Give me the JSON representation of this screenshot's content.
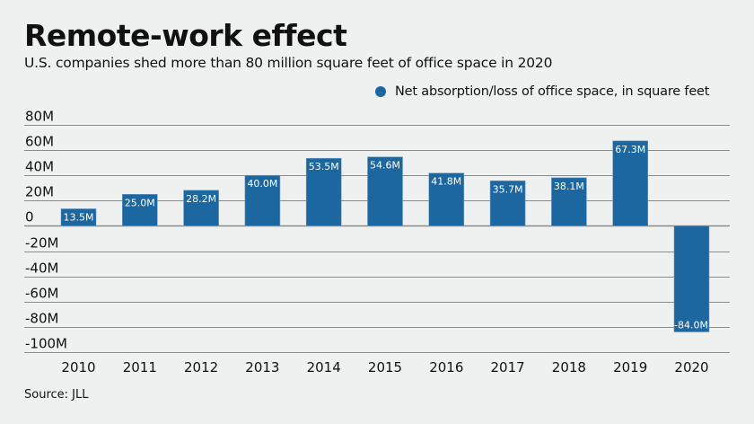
{
  "header": {
    "title": "Remote-work effect",
    "subtitle": "U.S. companies shed more than 80 million square feet of office space in 2020"
  },
  "footer": {
    "source": "Source: JLL"
  },
  "colors": {
    "bar": "#1c67a0",
    "grid": "#8a8c8c",
    "background": "#eff1f1"
  },
  "chart_data": {
    "type": "bar",
    "title": "Remote-work effect",
    "subtitle": "U.S. companies shed more than 80 million square feet of office space in 2020",
    "xlabel": "",
    "ylabel": "",
    "categories": [
      "2010",
      "2011",
      "2012",
      "2013",
      "2014",
      "2015",
      "2016",
      "2017",
      "2018",
      "2019",
      "2020"
    ],
    "series": [
      {
        "name": "Net absorption/loss of office space, in square feet",
        "values": [
          13.5,
          25.0,
          28.2,
          40.0,
          53.5,
          54.6,
          41.8,
          35.7,
          38.1,
          67.3,
          -84.0
        ],
        "labels": [
          "13.5M",
          "25.0M",
          "28.2M",
          "40.0M",
          "53.5M",
          "54.6M",
          "41.8M",
          "35.7M",
          "38.1M",
          "67.3M",
          "-84.0M"
        ]
      }
    ],
    "units": "million square feet",
    "ylim": [
      -100,
      80
    ],
    "yticks": [
      80,
      60,
      40,
      20,
      0,
      -20,
      -40,
      -60,
      -80,
      -100
    ],
    "ytick_labels": [
      "80M",
      "60M",
      "40M",
      "20M",
      "0",
      "-20M",
      "-40M",
      "-60M",
      "-80M",
      "-100M"
    ],
    "grid": true,
    "legend": {
      "position": "top-right",
      "entries": [
        "Net absorption/loss of office space, in square feet"
      ]
    }
  }
}
